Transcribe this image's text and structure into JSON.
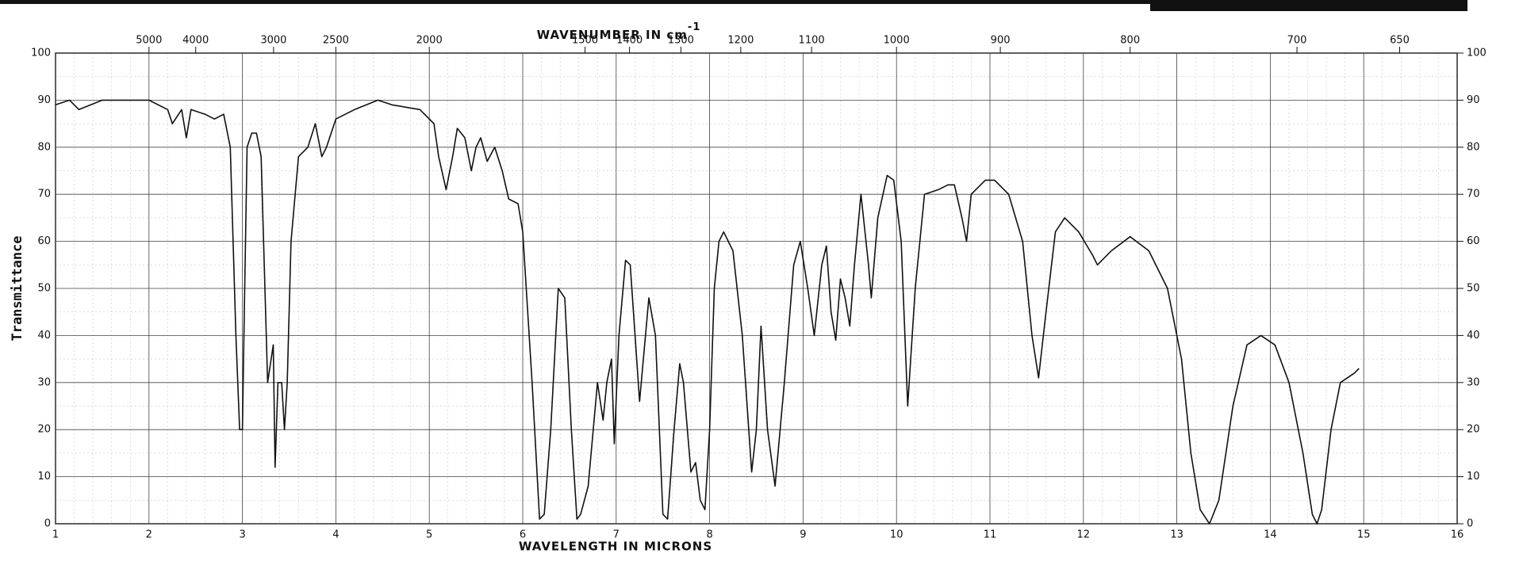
{
  "chart_data": {
    "type": "line",
    "top_axis_label": {
      "text": "WAVENUMBER IN cm",
      "superscript": "-1"
    },
    "x_label": "WAVELENGTH IN MICRONS",
    "y_label": "Transmittance",
    "color": "#111111",
    "grid": true,
    "xlim": [
      1,
      16
    ],
    "xticks": [
      1,
      2,
      3,
      4,
      5,
      6,
      7,
      8,
      9,
      10,
      11,
      12,
      13,
      14,
      15,
      16
    ],
    "ylim": [
      0,
      100
    ],
    "yticks": [
      0,
      10,
      20,
      30,
      40,
      50,
      60,
      70,
      80,
      90,
      100
    ],
    "y2lim": [
      0,
      100
    ],
    "y2ticks": [
      0,
      10,
      20,
      30,
      40,
      50,
      60,
      70,
      80,
      90,
      100
    ],
    "top_ticks": [
      5000,
      4000,
      3000,
      2500,
      2000,
      1500,
      1400,
      1300,
      1200,
      1100,
      1000,
      900,
      800,
      700,
      650
    ],
    "x": [
      1.0,
      1.15,
      1.25,
      1.5,
      2.0,
      2.2,
      2.25,
      2.35,
      2.4,
      2.45,
      2.6,
      2.7,
      2.8,
      2.87,
      2.93,
      2.97,
      3.0,
      3.02,
      3.05,
      3.1,
      3.15,
      3.2,
      3.27,
      3.33,
      3.35,
      3.38,
      3.42,
      3.45,
      3.48,
      3.52,
      3.6,
      3.7,
      3.78,
      3.85,
      3.9,
      4.0,
      4.2,
      4.45,
      4.6,
      4.9,
      5.05,
      5.1,
      5.18,
      5.25,
      5.3,
      5.38,
      5.45,
      5.5,
      5.55,
      5.62,
      5.7,
      5.78,
      5.85,
      5.95,
      6.0,
      6.1,
      6.18,
      6.23,
      6.3,
      6.38,
      6.45,
      6.52,
      6.58,
      6.62,
      6.7,
      6.8,
      6.86,
      6.9,
      6.95,
      6.98,
      7.03,
      7.1,
      7.15,
      7.25,
      7.35,
      7.42,
      7.5,
      7.55,
      7.62,
      7.68,
      7.72,
      7.8,
      7.85,
      7.9,
      7.95,
      8.0,
      8.05,
      8.1,
      8.15,
      8.25,
      8.35,
      8.45,
      8.5,
      8.55,
      8.62,
      8.7,
      8.8,
      8.9,
      8.97,
      9.05,
      9.12,
      9.2,
      9.25,
      9.3,
      9.35,
      9.4,
      9.45,
      9.5,
      9.55,
      9.62,
      9.7,
      9.73,
      9.8,
      9.9,
      9.97,
      10.05,
      10.12,
      10.2,
      10.3,
      10.45,
      10.55,
      10.62,
      10.7,
      10.75,
      10.8,
      10.95,
      11.05,
      11.2,
      11.35,
      11.45,
      11.52,
      11.6,
      11.7,
      11.8,
      11.95,
      12.1,
      12.15,
      12.3,
      12.5,
      12.7,
      12.9,
      13.05,
      13.15,
      13.25,
      13.35,
      13.45,
      13.6,
      13.75,
      13.9,
      14.05,
      14.2,
      14.35,
      14.45,
      14.5,
      14.55,
      14.65,
      14.75,
      14.9,
      14.95
    ],
    "values": [
      89,
      90,
      88,
      90,
      90,
      88,
      85,
      88,
      82,
      88,
      87,
      86,
      87,
      80,
      40,
      20,
      20,
      45,
      80,
      83,
      83,
      78,
      30,
      38,
      12,
      30,
      30,
      20,
      30,
      60,
      78,
      80,
      85,
      78,
      80,
      86,
      88,
      90,
      89,
      88,
      85,
      78,
      71,
      78,
      84,
      82,
      75,
      80,
      82,
      77,
      80,
      75,
      69,
      68,
      62,
      30,
      1,
      2,
      20,
      50,
      48,
      20,
      1,
      2,
      8,
      30,
      22,
      30,
      35,
      17,
      40,
      56,
      55,
      26,
      48,
      40,
      2,
      1,
      20,
      34,
      30,
      11,
      13,
      5,
      3,
      20,
      50,
      60,
      62,
      58,
      40,
      11,
      20,
      42,
      20,
      8,
      30,
      55,
      60,
      50,
      40,
      55,
      59,
      45,
      39,
      52,
      48,
      42,
      55,
      70,
      55,
      48,
      65,
      74,
      73,
      60,
      25,
      50,
      70,
      71,
      72,
      72,
      65,
      60,
      70,
      73,
      73,
      70,
      60,
      40,
      31,
      45,
      62,
      65,
      62,
      57,
      55,
      58,
      61,
      58,
      50,
      35,
      15,
      3,
      0,
      5,
      25,
      38,
      40,
      38,
      30,
      15,
      2,
      0,
      3,
      20,
      30,
      32,
      33
    ]
  }
}
